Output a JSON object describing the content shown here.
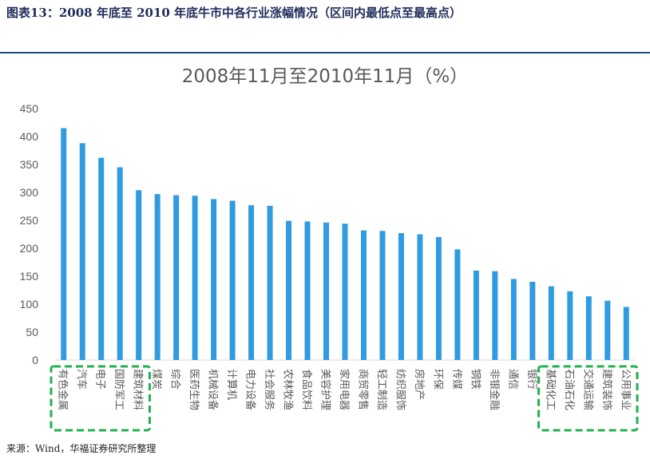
{
  "heading": "图表13：2008 年底至 2010 年底牛市中各行业涨幅情况（区间内最低点至最高点）",
  "source": "来源：Wind，华福证券研究所整理",
  "colors": {
    "bar": "#2f9be0",
    "highlight_box": "#22b14c",
    "heading": "#1f2c5b"
  },
  "chart_data": {
    "type": "bar",
    "title": "2008年11月至2010年11月（%）",
    "xlabel": "",
    "ylabel": "",
    "ylim": [
      0,
      450
    ],
    "yticks": [
      0,
      50,
      100,
      150,
      200,
      250,
      300,
      350,
      400,
      450
    ],
    "grid": false,
    "categories": [
      "有色金属",
      "汽车",
      "电子",
      "国防军工",
      "建筑材料",
      "煤炭",
      "综合",
      "医药生物",
      "机械设备",
      "计算机",
      "电力设备",
      "社会服务",
      "农林牧渔",
      "食品饮料",
      "美容护理",
      "家用电器",
      "商贸零售",
      "轻工制造",
      "纺织服饰",
      "房地产",
      "环保",
      "传媒",
      "钢铁",
      "非银金融",
      "通信",
      "银行",
      "基础化工",
      "石油石化",
      "交通运输",
      "建筑装饰",
      "公用事业"
    ],
    "values": [
      415,
      388,
      362,
      345,
      304,
      297,
      295,
      294,
      288,
      285,
      277,
      276,
      249,
      248,
      246,
      244,
      232,
      231,
      227,
      225,
      220,
      198,
      160,
      159,
      145,
      140,
      132,
      123,
      114,
      106,
      95
    ],
    "highlighted_groups": [
      [
        "有色金属",
        "汽车",
        "电子",
        "国防军工",
        "建筑材料"
      ],
      [
        "基础化工",
        "石油石化",
        "交通运输",
        "建筑装饰",
        "公用事业"
      ]
    ]
  }
}
